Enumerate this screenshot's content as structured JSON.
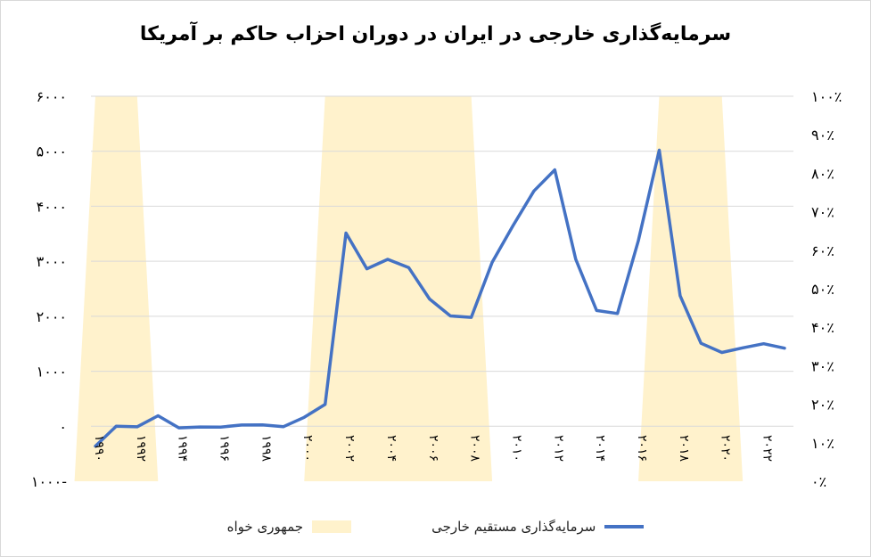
{
  "chart_data": {
    "type": "line",
    "title": "سرمایه‌گذاری خارجی در ایران در دوران احزاب حاکم بر آمریکا",
    "left_axis": {
      "ylim": [
        -1000,
        6000
      ],
      "ticks": [
        -1000,
        0,
        1000,
        2000,
        3000,
        4000,
        5000,
        6000
      ],
      "tick_labels": [
        "۱۰۰۰-",
        "۰",
        "۱۰۰۰",
        "۲۰۰۰",
        "۳۰۰۰",
        "۴۰۰۰",
        "۵۰۰۰",
        "۶۰۰۰"
      ]
    },
    "right_axis": {
      "ylim": [
        0,
        100
      ],
      "tick_labels": [
        "۰٪",
        "۱۰٪",
        "۲۰٪",
        "۳۰٪",
        "۴۰٪",
        "۵۰٪",
        "۶۰٪",
        "۷۰٪",
        "۸۰٪",
        "۹۰٪",
        "۱۰۰٪"
      ]
    },
    "x_years": [
      1990,
      1991,
      1992,
      1993,
      1994,
      1995,
      1996,
      1997,
      1998,
      1999,
      2000,
      2001,
      2002,
      2003,
      2004,
      2005,
      2006,
      2007,
      2008,
      2009,
      2010,
      2011,
      2012,
      2013,
      2014,
      2015,
      2016,
      2017,
      2018,
      2019,
      2020,
      2021,
      2022,
      2023
    ],
    "x_tick_labels": [
      {
        "year": 1990,
        "label": "۱۹۹۰"
      },
      {
        "year": 1992,
        "label": "۱۹۹۲"
      },
      {
        "year": 1994,
        "label": "۱۹۹۴"
      },
      {
        "year": 1996,
        "label": "۱۹۹۶"
      },
      {
        "year": 1998,
        "label": "۱۹۹۸"
      },
      {
        "year": 2000,
        "label": "۲۰۰۰"
      },
      {
        "year": 2002,
        "label": "۲۰۰۲"
      },
      {
        "year": 2004,
        "label": "۲۰۰۴"
      },
      {
        "year": 2006,
        "label": "۲۰۰۶"
      },
      {
        "year": 2008,
        "label": "۲۰۰۸"
      },
      {
        "year": 2010,
        "label": "۲۰۱۰"
      },
      {
        "year": 2012,
        "label": "۲۰۱۲"
      },
      {
        "year": 2014,
        "label": "۲۰۱۴"
      },
      {
        "year": 2016,
        "label": "۲۰۱۶"
      },
      {
        "year": 2018,
        "label": "۲۰۱۸"
      },
      {
        "year": 2020,
        "label": "۲۰۲۰"
      },
      {
        "year": 2022,
        "label": "۲۰۲۲"
      }
    ],
    "series": [
      {
        "name": "سرمایه‌گذاری مستقیم خارجی",
        "color": "#4472c4",
        "axis": "left",
        "values": [
          -362,
          2,
          -10,
          191,
          -30,
          -13,
          -15,
          22,
          25,
          -9,
          161,
          397,
          3512,
          2863,
          3034,
          2885,
          2314,
          2005,
          1980,
          2983,
          3649,
          4277,
          4662,
          3037,
          2105,
          2050,
          3372,
          5019,
          2373,
          1508,
          1342,
          1425,
          1500,
          1420
        ]
      },
      {
        "name": "جمهوری خواه",
        "color": "#fff2cc",
        "axis": "right",
        "kind": "area",
        "segments": [
          {
            "start": 1990,
            "end": 1992,
            "value": 100
          },
          {
            "start": 2001,
            "end": 2008,
            "value": 100
          },
          {
            "start": 2017,
            "end": 2020,
            "value": 100
          }
        ]
      }
    ],
    "legend_position": "bottom",
    "grid": true
  }
}
